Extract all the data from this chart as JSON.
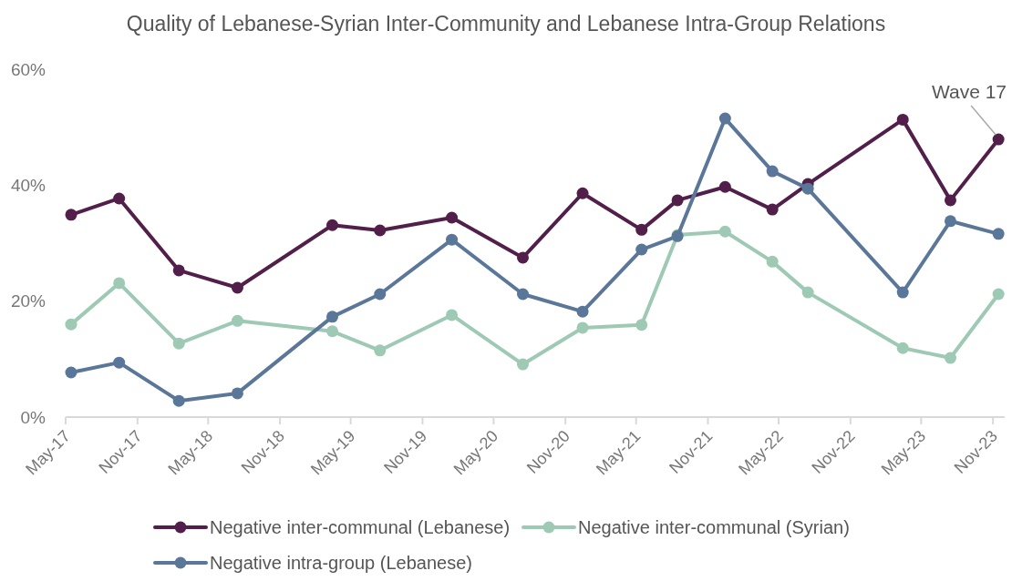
{
  "chart_data": {
    "type": "line",
    "title": "Quality of Lebanese-Syrian Inter-Community and Lebanese Intra-Group Relations",
    "x": [
      "2017-05-15",
      "2017-09-15",
      "2018-02-15",
      "2018-07-15",
      "2019-03-15",
      "2019-07-15",
      "2020-01-15",
      "2020-07-15",
      "2020-12-15",
      "2021-05-15",
      "2021-08-15",
      "2021-12-15",
      "2022-04-15",
      "2022-07-15",
      "2023-03-15",
      "2023-07-15",
      "2023-11-15"
    ],
    "series": [
      {
        "name": "Negative inter-communal (Lebanese)",
        "color": "#521f4a",
        "values": [
          34.9,
          37.7,
          25.3,
          22.3,
          33.1,
          32.2,
          34.4,
          27.5,
          38.6,
          32.3,
          37.4,
          39.7,
          35.8,
          40.2,
          51.3,
          37.4,
          47.9
        ]
      },
      {
        "name": "Negative inter-communal (Syrian)",
        "color": "#9ec9b5",
        "values": [
          16.0,
          23.1,
          12.7,
          16.6,
          14.8,
          11.5,
          17.6,
          9.1,
          15.4,
          15.9,
          31.4,
          32.0,
          26.8,
          21.5,
          11.9,
          10.2,
          21.2
        ]
      },
      {
        "name": "Negative intra-group (Lebanese)",
        "color": "#5a7799",
        "values": [
          7.7,
          9.4,
          2.8,
          4.1,
          17.3,
          21.2,
          30.6,
          21.2,
          18.2,
          28.9,
          31.2,
          51.5,
          42.4,
          39.4,
          21.5,
          33.8,
          31.6
        ]
      }
    ],
    "ylim": [
      0,
      60
    ],
    "yticks": [
      {
        "value": 0,
        "label": "0%"
      },
      {
        "value": 20,
        "label": "20%"
      },
      {
        "value": 40,
        "label": "40%"
      },
      {
        "value": 60,
        "label": "60%"
      }
    ],
    "xlim": [
      "2017-05-01",
      "2023-12-01"
    ],
    "xticks": [
      {
        "value": "2017-05-01",
        "label": "May-17"
      },
      {
        "value": "2017-11-01",
        "label": "Nov-17"
      },
      {
        "value": "2018-05-01",
        "label": "May-18"
      },
      {
        "value": "2018-11-01",
        "label": "Nov-18"
      },
      {
        "value": "2019-05-01",
        "label": "May-19"
      },
      {
        "value": "2019-11-01",
        "label": "Nov-19"
      },
      {
        "value": "2020-05-01",
        "label": "May-20"
      },
      {
        "value": "2020-11-01",
        "label": "Nov-20"
      },
      {
        "value": "2021-05-01",
        "label": "May-21"
      },
      {
        "value": "2021-11-01",
        "label": "Nov-21"
      },
      {
        "value": "2022-05-01",
        "label": "May-22"
      },
      {
        "value": "2022-11-01",
        "label": "Nov-22"
      },
      {
        "value": "2023-05-01",
        "label": "May-23"
      },
      {
        "value": "2023-11-01",
        "label": "Nov-23"
      }
    ],
    "annotations": [
      {
        "text": "Wave 17",
        "x": "2023-11-15",
        "y": 47.9
      }
    ],
    "marker": "circle",
    "line_style": "solid",
    "legend": "bottom"
  }
}
